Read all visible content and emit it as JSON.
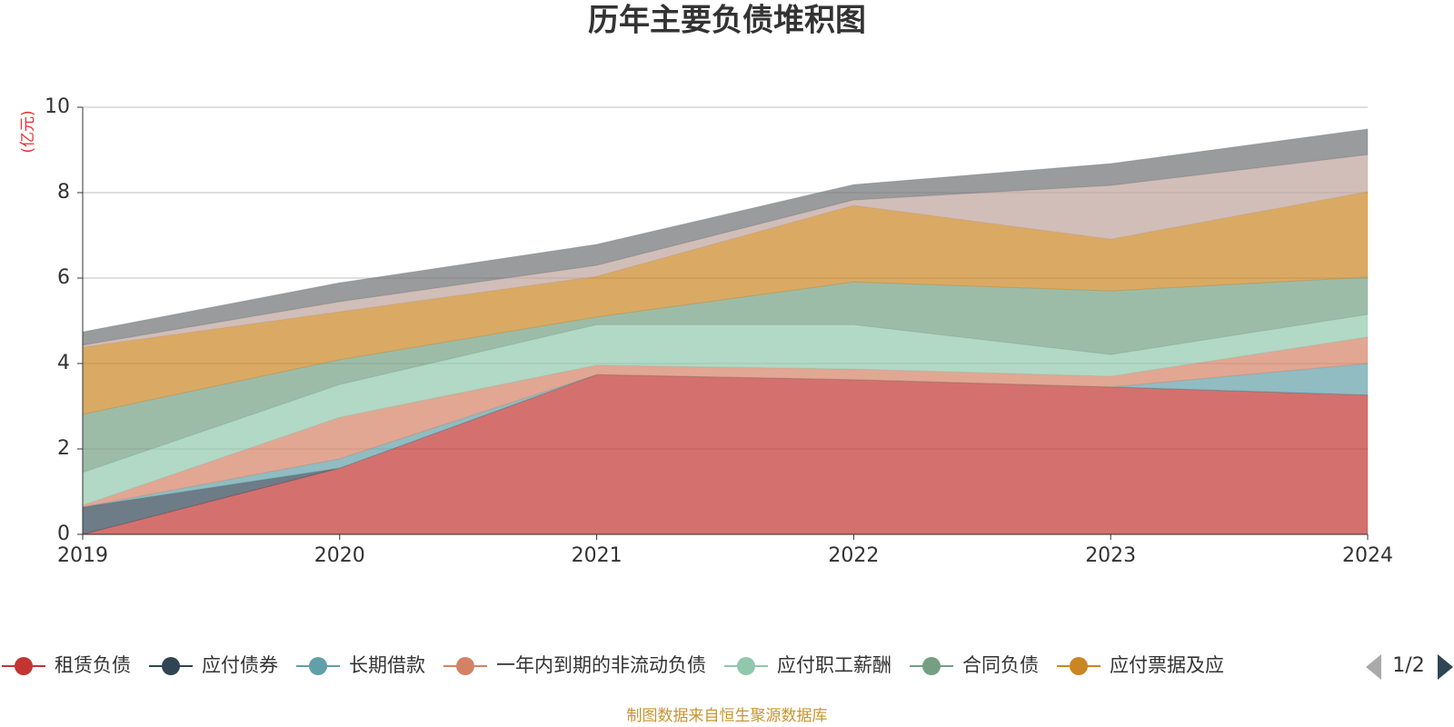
{
  "chart_data": {
    "type": "stacked-area",
    "title": "历年主要负债堆积图",
    "y_unit": "(亿元)",
    "categories": [
      "2019",
      "2020",
      "2021",
      "2022",
      "2023",
      "2024"
    ],
    "ylim": [
      0,
      10
    ],
    "yticks": [
      0,
      2,
      4,
      6,
      8,
      10
    ],
    "grid": true,
    "legend": "bottom",
    "legend_page": "1/2",
    "source": "制图数据来自恒生聚源数据库",
    "series": [
      {
        "name": "租赁负债",
        "color": "#c23531",
        "values": [
          0,
          1.55,
          3.74,
          3.62,
          3.45,
          3.26
        ]
      },
      {
        "name": "应付债券",
        "color": "#2f4554",
        "values": [
          0.64,
          0,
          0,
          0,
          0,
          0
        ]
      },
      {
        "name": "长期借款",
        "color": "#61a0a8",
        "values": [
          0,
          0.22,
          0,
          0,
          0,
          0.74
        ]
      },
      {
        "name": "一年内到期的非流动负债",
        "color": "#d48265",
        "values": [
          0.04,
          0.97,
          0.22,
          0.25,
          0.25,
          0.62
        ]
      },
      {
        "name": "应付职工薪酬",
        "color": "#91c7ae",
        "values": [
          0.77,
          0.77,
          0.95,
          1.04,
          0.51,
          0.53
        ]
      },
      {
        "name": "合同负债",
        "color": "#749f83",
        "values": [
          1.36,
          0.58,
          0.18,
          1.0,
          1.49,
          0.87
        ]
      },
      {
        "name": "应付票据及应",
        "color": "#ca8622",
        "values": [
          1.57,
          1.12,
          0.95,
          1.79,
          1.21,
          2.0
        ]
      },
      {
        "color": "#bda29a",
        "values": [
          0.05,
          0.24,
          0.26,
          0.13,
          1.26,
          0.87
        ]
      },
      {
        "color": "#6e7074",
        "values": [
          0.31,
          0.44,
          0.49,
          0.36,
          0.51,
          0.6
        ]
      }
    ]
  }
}
